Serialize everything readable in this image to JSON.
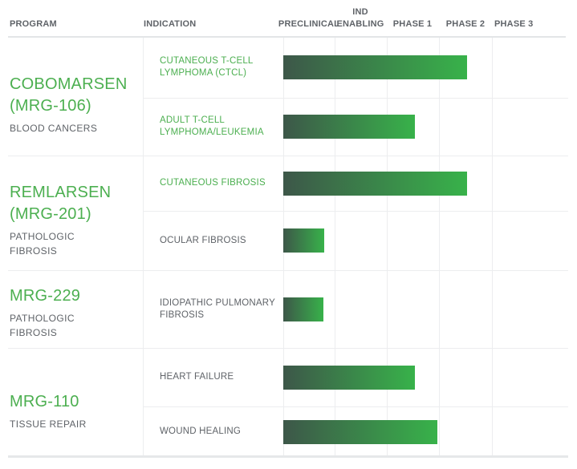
{
  "header": {
    "program": "PROGRAM",
    "indication": "INDICATION",
    "preclinical": "PRECLINICAL",
    "ind_enabling_line1": "IND",
    "ind_enabling_line2": "ENABLING",
    "phase1": "PHASE 1",
    "phase2": "PHASE 2",
    "phase3": "PHASE 3"
  },
  "colors": {
    "accent_green": "#4caf50",
    "text_gray": "#5f6368",
    "grid_line": "#ecedef",
    "bar_gradient_start": "#3d5749",
    "bar_gradient_end": "#38b24a"
  },
  "chart_data": {
    "type": "bar",
    "description": "Drug development pipeline: horizontal progress bars per indication across development phases",
    "phase_columns": [
      "PRECLINICAL",
      "IND ENABLING",
      "PHASE 1",
      "PHASE 2",
      "PHASE 3"
    ],
    "progress_unit": "phases completed (1 = end of Preclinical, 2 = end of IND Enabling, 3 = end of Phase 1, 4 = end of Phase 2, 5 = end of Phase 3)",
    "groups": [
      {
        "program_line1": "COBOMARSEN",
        "program_line2": "(MRG-106)",
        "subtitle_line1": "BLOOD CANCERS",
        "subtitle_line2": "",
        "rows": [
          {
            "indication": "CUTANEOUS T-CELL LYMPHOMA (CTCL)",
            "highlighted": true,
            "progress_phases": 3.53
          },
          {
            "indication": "ADULT T-CELL LYMPHOMA/LEUKEMIA",
            "highlighted": true,
            "progress_phases": 2.54
          }
        ]
      },
      {
        "program_line1": "REMLARSEN",
        "program_line2": "(MRG-201)",
        "subtitle_line1": "PATHOLOGIC",
        "subtitle_line2": "FIBROSIS",
        "rows": [
          {
            "indication": "CUTANEOUS FIBROSIS",
            "highlighted": true,
            "progress_phases": 3.53
          },
          {
            "indication": "OCULAR FIBROSIS",
            "highlighted": false,
            "progress_phases": 0.8
          }
        ]
      },
      {
        "program_line1": "MRG-229",
        "program_line2": "",
        "subtitle_line1": "PATHOLOGIC",
        "subtitle_line2": "FIBROSIS",
        "rows": [
          {
            "indication": "IDIOPATHIC PULMONARY FIBROSIS",
            "highlighted": false,
            "progress_phases": 0.78
          }
        ]
      },
      {
        "program_line1": "MRG-110",
        "program_line2": "",
        "subtitle_line1": "TISSUE REPAIR",
        "subtitle_line2": "",
        "rows": [
          {
            "indication": "HEART FAILURE",
            "highlighted": false,
            "progress_phases": 2.54
          },
          {
            "indication": "WOUND HEALING",
            "highlighted": false,
            "progress_phases": 2.97
          }
        ]
      }
    ]
  }
}
